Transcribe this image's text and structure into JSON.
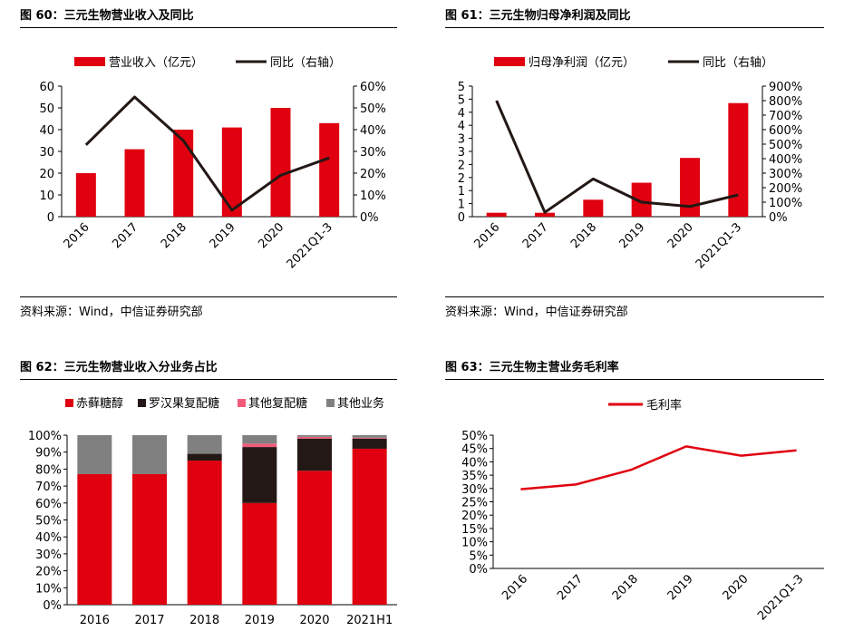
{
  "panels": [
    {
      "title": "图 60：三元生物营业收入及同比",
      "source": "资料来源：Wind，中信证券研究部"
    },
    {
      "title": "图 61：三元生物归母净利润及同比",
      "source": "资料来源：Wind，中信证券研究部"
    },
    {
      "title": "图 62：三元生物营业收入分业务占比",
      "source": ""
    },
    {
      "title": "图 63：三元生物主营业务毛利率",
      "source": ""
    }
  ],
  "chart_data": [
    {
      "type": "bar",
      "categories": [
        "2016",
        "2017",
        "2018",
        "2019",
        "2020",
        "2021Q1-3"
      ],
      "series": [
        {
          "name": "营业收入（亿元）",
          "type": "bar",
          "axis": "left",
          "values": [
            20,
            31,
            40,
            41,
            50,
            43
          ]
        },
        {
          "name": "同比（右轴）",
          "type": "line",
          "axis": "right",
          "values": [
            33,
            55,
            35,
            3,
            19,
            27
          ]
        }
      ],
      "ylim": [
        0,
        60
      ],
      "yticks": [
        "0",
        "10",
        "20",
        "30",
        "40",
        "50",
        "60"
      ],
      "y2lim": [
        0,
        60
      ],
      "y2ticks": [
        "0%",
        "10%",
        "20%",
        "30%",
        "40%",
        "50%",
        "60%"
      ],
      "colors": {
        "bar": "#e0000f",
        "line": "#231815"
      },
      "legend": "top"
    },
    {
      "type": "bar",
      "categories": [
        "2016",
        "2017",
        "2018",
        "2019",
        "2020",
        "2021Q1-3"
      ],
      "series": [
        {
          "name": "归母净利润（亿元）",
          "type": "bar",
          "axis": "left",
          "values": [
            0.15,
            0.15,
            0.65,
            1.3,
            2.25,
            4.35
          ]
        },
        {
          "name": "同比（右轴）",
          "type": "line",
          "axis": "right",
          "values": [
            800,
            30,
            260,
            100,
            70,
            150
          ]
        }
      ],
      "ylim": [
        0,
        5
      ],
      "yticks": [
        "0",
        "1",
        "1",
        "2",
        "2",
        "3",
        "3",
        "4",
        "4",
        "5",
        "5"
      ],
      "y2lim": [
        0,
        900
      ],
      "y2ticks": [
        "0%",
        "100%",
        "200%",
        "300%",
        "400%",
        "500%",
        "600%",
        "700%",
        "800%",
        "900%"
      ],
      "colors": {
        "bar": "#e0000f",
        "line": "#231815"
      },
      "legend": "top"
    },
    {
      "type": "bar",
      "stacked": true,
      "categories": [
        "2016",
        "2017",
        "2018",
        "2019",
        "2020",
        "2021H1"
      ],
      "series": [
        {
          "name": "赤藓糖醇",
          "values": [
            77,
            77,
            85,
            60,
            79,
            92
          ],
          "color": "#e0000f"
        },
        {
          "name": "罗汉果复配糖",
          "values": [
            0,
            0,
            4,
            33,
            19,
            6
          ],
          "color": "#231815"
        },
        {
          "name": "其他复配糖",
          "values": [
            0,
            0,
            0,
            2,
            1,
            0.5
          ],
          "color": "#f25c7a"
        },
        {
          "name": "其他业务",
          "values": [
            23,
            23,
            11,
            5,
            1,
            1.5
          ],
          "color": "#808080"
        }
      ],
      "ylim": [
        0,
        100
      ],
      "yticks": [
        "0%",
        "10%",
        "20%",
        "30%",
        "40%",
        "50%",
        "60%",
        "70%",
        "80%",
        "90%",
        "100%"
      ],
      "legend": "top"
    },
    {
      "type": "line",
      "categories": [
        "2016",
        "2017",
        "2018",
        "2019",
        "2020",
        "2021Q1-3"
      ],
      "series": [
        {
          "name": "毛利率",
          "values": [
            29.7,
            31.5,
            37,
            45.8,
            42.3,
            44.3
          ],
          "color": "#e0000f"
        }
      ],
      "ylim": [
        0,
        50
      ],
      "yticks": [
        "0%",
        "5%",
        "10%",
        "15%",
        "20%",
        "25%",
        "30%",
        "35%",
        "40%",
        "45%",
        "50%"
      ],
      "legend": "top"
    }
  ]
}
